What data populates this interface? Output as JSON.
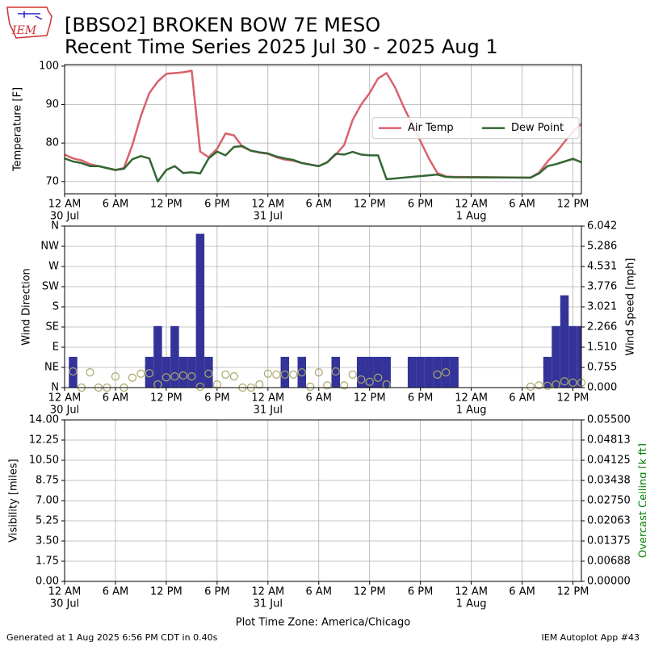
{
  "header": {
    "logo_text": "IEM",
    "title": "[BBSO2] BROKEN BOW 7E MESO",
    "subtitle": "Recent Time Series 2025 Jul 30 - 2025 Aug 1"
  },
  "footer": {
    "left": "Generated at 1 Aug 2025 6:56 PM CDT in 0.40s",
    "right": "IEM Autoplot App #43"
  },
  "chart_data": [
    {
      "type": "line",
      "ylabel": "Temperature [F]",
      "grid": true,
      "legend": "center right",
      "legend_ncol": 2,
      "xlim": [
        0,
        61
      ],
      "ylim": [
        66.8,
        100.4
      ],
      "yticks": [
        70,
        80,
        90,
        100
      ],
      "xticks": [
        {
          "value": 0,
          "label": "12 AM"
        },
        {
          "value": 6,
          "label": "6 AM"
        },
        {
          "value": 12,
          "label": "12 PM"
        },
        {
          "value": 18,
          "label": "6 PM"
        },
        {
          "value": 24,
          "label": "12 AM"
        },
        {
          "value": 30,
          "label": "6 AM"
        },
        {
          "value": 36,
          "label": "12 PM"
        },
        {
          "value": 42,
          "label": "6 PM"
        },
        {
          "value": 48,
          "label": "12 AM"
        },
        {
          "value": 54,
          "label": "6 AM"
        },
        {
          "value": 60,
          "label": "12 PM"
        }
      ],
      "xtick_dates": [
        {
          "value": 0,
          "label": "30 Jul"
        },
        {
          "value": 24,
          "label": "31 Jul"
        },
        {
          "value": 48,
          "label": "1 Aug"
        }
      ],
      "x": [
        0,
        1,
        2,
        3,
        4,
        5,
        6,
        7,
        8,
        9,
        10,
        11,
        12,
        13,
        14,
        15,
        16,
        17,
        18,
        19,
        20,
        21,
        22,
        23,
        24,
        25,
        26,
        27,
        28,
        29,
        30,
        31,
        32,
        33,
        34,
        35,
        36,
        37,
        38,
        39,
        40,
        41,
        42,
        43,
        44,
        45,
        46,
        55,
        56,
        57,
        58,
        59,
        60,
        61
      ],
      "series": [
        {
          "name": "Air Temp",
          "color": "#d9626b",
          "values": [
            77,
            76,
            75.5,
            74.5,
            74,
            73.5,
            73,
            73.5,
            79.5,
            87,
            93,
            96,
            98,
            98.2,
            98.4,
            98.8,
            77.8,
            76.3,
            78.5,
            82.5,
            82,
            79,
            78,
            77.5,
            77.2,
            76.3,
            75.7,
            75.4,
            74.8,
            74.4,
            74,
            75,
            77,
            79.5,
            86,
            90,
            93,
            96.8,
            98.2,
            94.5,
            89.5,
            85,
            80.5,
            76,
            72.2,
            71.3,
            71.2,
            71,
            72.3,
            75.2,
            77.5,
            80.3,
            83,
            85
          ]
        },
        {
          "name": "Dew Point",
          "color": "#336633",
          "values": [
            76,
            75.2,
            74.8,
            74,
            74,
            73.5,
            73,
            73.3,
            75.8,
            76.6,
            76,
            70,
            73,
            74,
            72.2,
            72.4,
            72.1,
            76,
            77.8,
            76.8,
            79,
            79.2,
            78,
            77.6,
            77.3,
            76.5,
            76,
            75.6,
            74.8,
            74.4,
            74,
            75,
            77.2,
            77,
            77.7,
            77,
            76.8,
            76.8,
            70.6,
            70.8,
            71,
            71.2,
            71.4,
            71.6,
            71.8,
            71.2,
            71.1,
            71,
            72.1,
            74,
            74.5,
            75.2,
            75.9,
            75
          ]
        }
      ]
    },
    {
      "type": "bar",
      "ylabel": "Wind Direction",
      "y2label": "Wind Speed [mph]",
      "grid": true,
      "xlim": [
        0,
        61
      ],
      "ylim": [
        0,
        360
      ],
      "y2lim": [
        0,
        6.042
      ],
      "yticks": [
        {
          "value": 0,
          "label": "N"
        },
        {
          "value": 45,
          "label": "NE"
        },
        {
          "value": 90,
          "label": "E"
        },
        {
          "value": 135,
          "label": "SE"
        },
        {
          "value": 180,
          "label": "S"
        },
        {
          "value": 225,
          "label": "SW"
        },
        {
          "value": 270,
          "label": "W"
        },
        {
          "value": 315,
          "label": "NW"
        },
        {
          "value": 360,
          "label": "N"
        }
      ],
      "y2ticks": [
        {
          "value": 0,
          "label": "0.000"
        },
        0.755,
        {
          "value": 1.51,
          "label": "1.510"
        },
        2.266,
        3.021,
        3.776,
        4.531,
        5.286,
        6.042
      ],
      "xticks": [
        {
          "value": 0,
          "label": "12 AM"
        },
        {
          "value": 6,
          "label": "6 AM"
        },
        {
          "value": 12,
          "label": "12 PM"
        },
        {
          "value": 18,
          "label": "6 PM"
        },
        {
          "value": 24,
          "label": "12 AM"
        },
        {
          "value": 30,
          "label": "6 AM"
        },
        {
          "value": 36,
          "label": "12 PM"
        },
        {
          "value": 42,
          "label": "6 PM"
        },
        {
          "value": 48,
          "label": "12 AM"
        },
        {
          "value": 54,
          "label": "6 AM"
        },
        {
          "value": 60,
          "label": "12 PM"
        }
      ],
      "xtick_dates": [
        {
          "value": 0,
          "label": "30 Jul"
        },
        {
          "value": 24,
          "label": "31 Jul"
        },
        {
          "value": 48,
          "label": "1 Aug"
        }
      ],
      "series": [
        {
          "kind": "bar",
          "axis": "y2",
          "color": "#333399",
          "x": [
            1,
            10,
            11,
            12,
            13,
            14,
            15,
            16,
            17,
            26,
            28,
            32,
            35,
            36,
            37,
            38,
            41,
            42,
            43,
            44,
            45,
            46,
            57,
            58,
            59,
            60,
            61
          ],
          "values": [
            1.151,
            1.151,
            2.302,
            1.151,
            2.302,
            1.151,
            1.151,
            5.754,
            1.151,
            1.151,
            1.151,
            1.151,
            1.151,
            1.151,
            1.151,
            1.151,
            1.151,
            1.151,
            1.151,
            1.151,
            1.151,
            1.151,
            1.151,
            2.302,
            3.452,
            2.302,
            2.302
          ]
        },
        {
          "kind": "scatter",
          "color": "#a9a86a",
          "x": [
            1,
            2,
            3,
            4,
            5,
            6,
            7,
            8,
            9,
            10,
            11,
            12,
            13,
            14,
            15,
            16,
            17,
            18,
            19,
            20,
            21,
            22,
            23,
            24,
            25,
            26,
            27,
            28,
            29,
            30,
            31,
            32,
            33,
            34,
            35,
            36,
            37,
            38,
            44,
            45,
            55,
            56,
            57,
            58,
            59,
            60,
            61
          ],
          "values": [
            36,
            0,
            34,
            0,
            0,
            25,
            0,
            22,
            31,
            32,
            7,
            23,
            25,
            27,
            25,
            2,
            31,
            7,
            29,
            25,
            0,
            0,
            7,
            31,
            29,
            29,
            29,
            34,
            2,
            34,
            5,
            36,
            5,
            29,
            18,
            13,
            22,
            7,
            29,
            34,
            2,
            5,
            4,
            7,
            14,
            11,
            11
          ]
        }
      ]
    },
    {
      "type": "line",
      "ylabel": "Visibility [miles]",
      "y2label": "Overcast Ceiling [k ft]",
      "y2label_color": "green",
      "grid": true,
      "xlabel": "Plot Time Zone: America/Chicago",
      "xlim": [
        0,
        61
      ],
      "ylim": [
        0,
        14
      ],
      "y2lim": [
        0,
        0.055
      ],
      "yticks": [
        {
          "value": 0,
          "label": "0.00"
        },
        1.75,
        {
          "value": 3.5,
          "label": "3.50"
        },
        5.25,
        {
          "value": 7,
          "label": "7.00"
        },
        8.75,
        {
          "value": 10.5,
          "label": "10.50"
        },
        12.25,
        {
          "value": 14,
          "label": "14.00"
        }
      ],
      "y2ticks": [
        {
          "value": 0,
          "label": "0.00000"
        },
        0.00688,
        0.01375,
        0.02063,
        {
          "value": 0.0275,
          "label": "0.02750"
        },
        0.03438,
        0.04125,
        0.04813,
        {
          "value": 0.055,
          "label": "0.05500"
        }
      ],
      "xticks": [
        {
          "value": 0,
          "label": "12 AM"
        },
        {
          "value": 6,
          "label": "6 AM"
        },
        {
          "value": 12,
          "label": "12 PM"
        },
        {
          "value": 18,
          "label": "6 PM"
        },
        {
          "value": 24,
          "label": "12 AM"
        },
        {
          "value": 30,
          "label": "6 AM"
        },
        {
          "value": 36,
          "label": "12 PM"
        },
        {
          "value": 42,
          "label": "6 PM"
        },
        {
          "value": 48,
          "label": "12 AM"
        },
        {
          "value": 54,
          "label": "6 AM"
        },
        {
          "value": 60,
          "label": "12 PM"
        }
      ],
      "xtick_dates": [
        {
          "value": 0,
          "label": "30 Jul"
        },
        {
          "value": 24,
          "label": "31 Jul"
        },
        {
          "value": 48,
          "label": "1 Aug"
        }
      ]
    }
  ]
}
